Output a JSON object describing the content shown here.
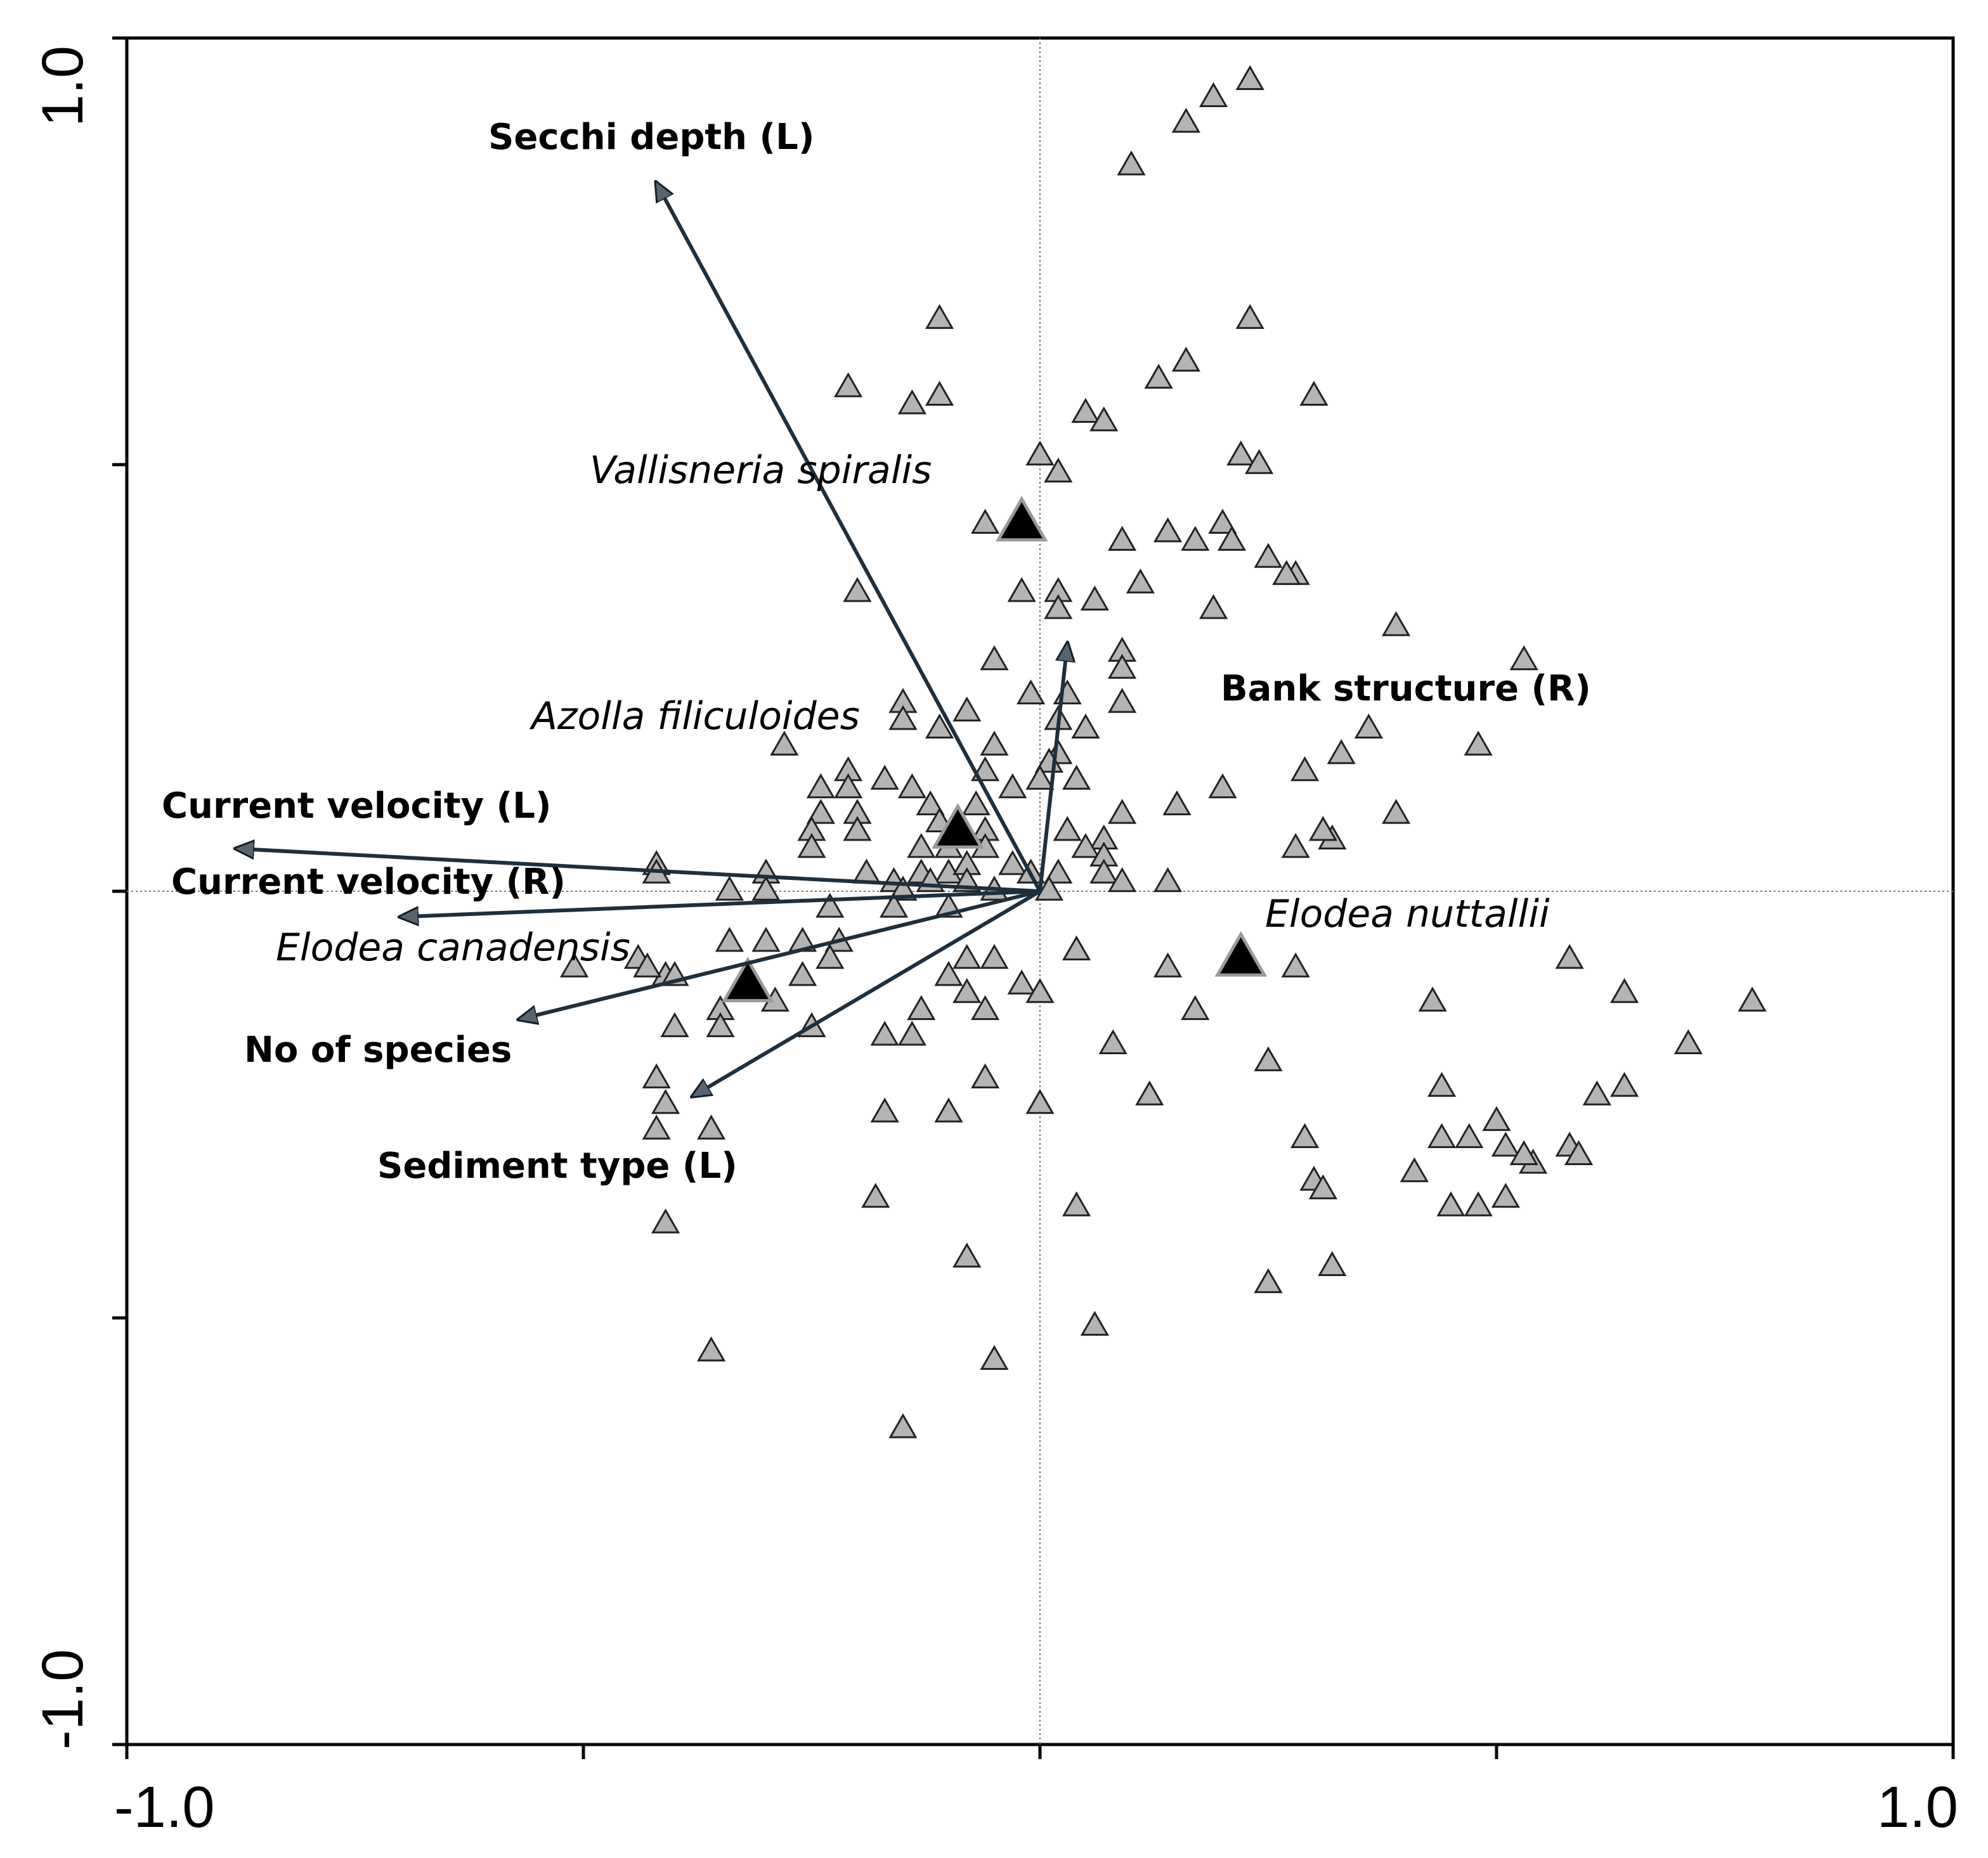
{
  "chart_data": {
    "type": "scatter",
    "subtype": "CCA ordination biplot",
    "x_axis": {
      "min": -1.0,
      "max": 1.0,
      "tick_labels": [
        "-1.0",
        "1.0"
      ]
    },
    "y_axis": {
      "min": -1.0,
      "max": 1.0,
      "tick_labels": [
        "-1.0",
        "1.0"
      ]
    },
    "zero_lines": true,
    "colors": {
      "site_fill": "#b4b4b4",
      "species_fill": "#000000",
      "arrow_line": "#1e2f3d",
      "arrowhead_fill": "#5a646e"
    },
    "environmental_vectors": [
      {
        "name": "Secchi depth (L)",
        "x": -0.42,
        "y": 0.83
      },
      {
        "name": "Current velocity (L)",
        "x": -0.88,
        "y": 0.05
      },
      {
        "name": "Current velocity (R)",
        "x": -0.7,
        "y": -0.03
      },
      {
        "name": "No of species",
        "x": -0.57,
        "y": -0.15
      },
      {
        "name": "Sediment type (L)",
        "x": -0.38,
        "y": -0.24
      },
      {
        "name": "Bank structure (R)",
        "x": 0.03,
        "y": 0.29
      }
    ],
    "species": [
      {
        "name": "Vallisneria spiralis",
        "x": -0.02,
        "y": 0.43
      },
      {
        "name": "Azolla filiculoides",
        "x": -0.09,
        "y": 0.07
      },
      {
        "name": "Elodea canadensis",
        "x": -0.32,
        "y": -0.11
      },
      {
        "name": "Elodea nuttallii",
        "x": 0.22,
        "y": -0.08
      }
    ],
    "sites": [
      [
        0.23,
        0.95
      ],
      [
        0.19,
        0.93
      ],
      [
        0.16,
        0.9
      ],
      [
        0.1,
        0.85
      ],
      [
        -0.11,
        0.67
      ],
      [
        0.23,
        0.67
      ],
      [
        -0.11,
        0.58
      ],
      [
        -0.14,
        0.57
      ],
      [
        -0.21,
        0.59
      ],
      [
        0.16,
        0.62
      ],
      [
        0.13,
        0.6
      ],
      [
        0.3,
        0.58
      ],
      [
        0.05,
        0.56
      ],
      [
        0.07,
        0.55
      ],
      [
        0.0,
        0.51
      ],
      [
        0.02,
        0.49
      ],
      [
        0.22,
        0.51
      ],
      [
        0.24,
        0.5
      ],
      [
        -0.06,
        0.43
      ],
      [
        0.09,
        0.41
      ],
      [
        0.14,
        0.42
      ],
      [
        0.17,
        0.41
      ],
      [
        0.2,
        0.43
      ],
      [
        0.21,
        0.41
      ],
      [
        0.25,
        0.39
      ],
      [
        0.28,
        0.37
      ],
      [
        0.27,
        0.37
      ],
      [
        -0.2,
        0.35
      ],
      [
        -0.02,
        0.35
      ],
      [
        0.02,
        0.35
      ],
      [
        0.11,
        0.36
      ],
      [
        0.06,
        0.34
      ],
      [
        0.19,
        0.33
      ],
      [
        0.02,
        0.33
      ],
      [
        0.39,
        0.31
      ],
      [
        -0.05,
        0.27
      ],
      [
        0.09,
        0.28
      ],
      [
        0.09,
        0.26
      ],
      [
        0.53,
        0.27
      ],
      [
        -0.01,
        0.23
      ],
      [
        0.03,
        0.23
      ],
      [
        0.09,
        0.22
      ],
      [
        -0.15,
        0.22
      ],
      [
        -0.15,
        0.2
      ],
      [
        -0.08,
        0.21
      ],
      [
        -0.11,
        0.19
      ],
      [
        0.02,
        0.2
      ],
      [
        0.05,
        0.19
      ],
      [
        0.36,
        0.19
      ],
      [
        0.48,
        0.17
      ],
      [
        0.33,
        0.16
      ],
      [
        -0.28,
        0.17
      ],
      [
        -0.21,
        0.14
      ],
      [
        -0.17,
        0.13
      ],
      [
        -0.06,
        0.14
      ],
      [
        -0.05,
        0.17
      ],
      [
        0.02,
        0.16
      ],
      [
        0.01,
        0.15
      ],
      [
        0.0,
        0.13
      ],
      [
        0.04,
        0.13
      ],
      [
        0.29,
        0.14
      ],
      [
        -0.24,
        0.12
      ],
      [
        -0.21,
        0.12
      ],
      [
        -0.14,
        0.12
      ],
      [
        -0.03,
        0.12
      ],
      [
        0.2,
        0.12
      ],
      [
        -0.24,
        0.09
      ],
      [
        -0.2,
        0.09
      ],
      [
        -0.12,
        0.1
      ],
      [
        -0.07,
        0.1
      ],
      [
        0.15,
        0.1
      ],
      [
        0.09,
        0.09
      ],
      [
        0.39,
        0.09
      ],
      [
        -0.25,
        0.07
      ],
      [
        -0.2,
        0.07
      ],
      [
        -0.11,
        0.08
      ],
      [
        -0.06,
        0.07
      ],
      [
        0.03,
        0.07
      ],
      [
        0.07,
        0.06
      ],
      [
        0.32,
        0.06
      ],
      [
        0.31,
        0.07
      ],
      [
        0.28,
        0.05
      ],
      [
        -0.25,
        0.05
      ],
      [
        -0.13,
        0.05
      ],
      [
        -0.1,
        0.05
      ],
      [
        -0.06,
        0.05
      ],
      [
        0.05,
        0.05
      ],
      [
        0.07,
        0.04
      ],
      [
        -0.42,
        0.03
      ],
      [
        -0.42,
        0.02
      ],
      [
        -0.3,
        0.02
      ],
      [
        -0.19,
        0.02
      ],
      [
        -0.16,
        0.01
      ],
      [
        -0.13,
        0.02
      ],
      [
        -0.1,
        0.02
      ],
      [
        -0.08,
        0.03
      ],
      [
        -0.03,
        0.03
      ],
      [
        -0.01,
        0.02
      ],
      [
        0.02,
        0.02
      ],
      [
        0.07,
        0.02
      ],
      [
        -0.34,
        0.0
      ],
      [
        -0.3,
        0.0
      ],
      [
        -0.15,
        0.0
      ],
      [
        -0.12,
        0.01
      ],
      [
        -0.08,
        0.01
      ],
      [
        -0.05,
        0.0
      ],
      [
        0.01,
        0.0
      ],
      [
        0.09,
        0.01
      ],
      [
        0.14,
        0.01
      ],
      [
        -0.23,
        -0.02
      ],
      [
        -0.16,
        -0.02
      ],
      [
        -0.1,
        -0.02
      ],
      [
        -0.34,
        -0.06
      ],
      [
        -0.3,
        -0.06
      ],
      [
        -0.26,
        -0.06
      ],
      [
        -0.22,
        -0.06
      ],
      [
        0.04,
        -0.07
      ],
      [
        -0.51,
        -0.09
      ],
      [
        -0.44,
        -0.08
      ],
      [
        -0.41,
        -0.1
      ],
      [
        -0.23,
        -0.08
      ],
      [
        -0.08,
        -0.08
      ],
      [
        -0.05,
        -0.08
      ],
      [
        0.14,
        -0.09
      ],
      [
        0.28,
        -0.09
      ],
      [
        0.58,
        -0.08
      ],
      [
        -0.43,
        -0.09
      ],
      [
        -0.4,
        -0.1
      ],
      [
        -0.26,
        -0.1
      ],
      [
        -0.1,
        -0.1
      ],
      [
        -0.02,
        -0.11
      ],
      [
        0.0,
        -0.12
      ],
      [
        0.64,
        -0.12
      ],
      [
        -0.08,
        -0.12
      ],
      [
        -0.35,
        -0.14
      ],
      [
        -0.29,
        -0.13
      ],
      [
        -0.13,
        -0.14
      ],
      [
        -0.06,
        -0.14
      ],
      [
        0.17,
        -0.14
      ],
      [
        0.43,
        -0.13
      ],
      [
        0.78,
        -0.13
      ],
      [
        -0.4,
        -0.16
      ],
      [
        -0.35,
        -0.16
      ],
      [
        -0.25,
        -0.16
      ],
      [
        -0.17,
        -0.17
      ],
      [
        -0.14,
        -0.17
      ],
      [
        0.08,
        -0.18
      ],
      [
        0.71,
        -0.18
      ],
      [
        -0.42,
        -0.22
      ],
      [
        -0.06,
        -0.22
      ],
      [
        0.44,
        -0.23
      ],
      [
        0.64,
        -0.23
      ],
      [
        0.25,
        -0.2
      ],
      [
        -0.41,
        -0.25
      ],
      [
        -0.17,
        -0.26
      ],
      [
        -0.1,
        -0.26
      ],
      [
        -0.42,
        -0.28
      ],
      [
        0.0,
        -0.25
      ],
      [
        0.12,
        -0.24
      ],
      [
        0.61,
        -0.24
      ],
      [
        0.5,
        -0.27
      ],
      [
        -0.36,
        -0.28
      ],
      [
        0.29,
        -0.29
      ],
      [
        0.44,
        -0.29
      ],
      [
        0.47,
        -0.29
      ],
      [
        0.51,
        -0.3
      ],
      [
        0.54,
        -0.32
      ],
      [
        0.58,
        -0.3
      ],
      [
        0.59,
        -0.31
      ],
      [
        0.53,
        -0.31
      ],
      [
        0.41,
        -0.33
      ],
      [
        0.3,
        -0.34
      ],
      [
        0.31,
        -0.35
      ],
      [
        0.45,
        -0.37
      ],
      [
        0.48,
        -0.37
      ],
      [
        0.51,
        -0.36
      ],
      [
        -0.41,
        -0.39
      ],
      [
        -0.18,
        -0.36
      ],
      [
        0.04,
        -0.37
      ],
      [
        0.32,
        -0.44
      ],
      [
        0.25,
        -0.46
      ],
      [
        -0.08,
        -0.43
      ],
      [
        -0.36,
        -0.54
      ],
      [
        -0.05,
        -0.55
      ],
      [
        0.06,
        -0.51
      ],
      [
        -0.15,
        -0.63
      ]
    ]
  }
}
